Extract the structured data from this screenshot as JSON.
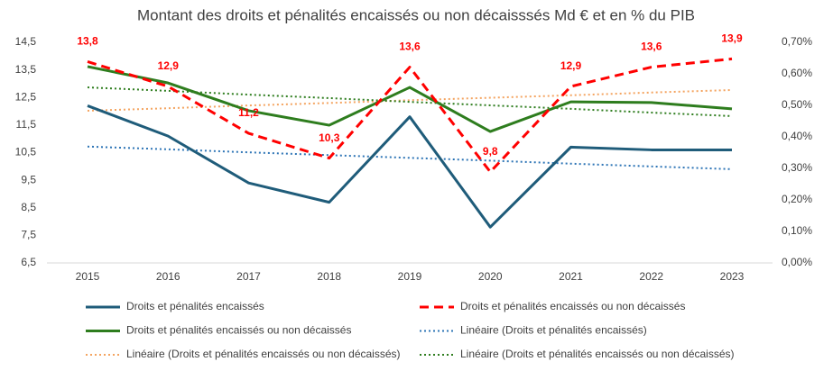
{
  "chart_data": {
    "type": "line",
    "title": "Montant des droits et pénalités encaissés ou non décaisssés Md € et en % du PIB",
    "categories": [
      "2015",
      "2016",
      "2017",
      "2018",
      "2019",
      "2020",
      "2021",
      "2022",
      "2023"
    ],
    "ylim": [
      6.5,
      14.5
    ],
    "yticks": [
      {
        "value": 6.5,
        "label": "6,5"
      },
      {
        "value": 7.5,
        "label": "7,5"
      },
      {
        "value": 8.5,
        "label": "8,5"
      },
      {
        "value": 9.5,
        "label": "9,5"
      },
      {
        "value": 10.5,
        "label": "10,5"
      },
      {
        "value": 11.5,
        "label": "11,5"
      },
      {
        "value": 12.5,
        "label": "12,5"
      },
      {
        "value": 13.5,
        "label": "13,5"
      },
      {
        "value": 14.5,
        "label": "14,5"
      }
    ],
    "y2lim": [
      0,
      0.7
    ],
    "y2ticks": [
      {
        "value": 0,
        "label": "0,00%"
      },
      {
        "value": 0.1,
        "label": "0,10%"
      },
      {
        "value": 0.2,
        "label": "0,20%"
      },
      {
        "value": 0.3,
        "label": "0,30%"
      },
      {
        "value": 0.4,
        "label": "0,40%"
      },
      {
        "value": 0.5,
        "label": "0,50%"
      },
      {
        "value": 0.6,
        "label": "0,60%"
      },
      {
        "value": 0.7,
        "label": "0,70%"
      }
    ],
    "series": [
      {
        "name": "Droits et pénalités encaissés",
        "color": "#1f5c7a",
        "style": "solid",
        "values": [
          12.2,
          11.1,
          9.4,
          8.7,
          11.8,
          7.8,
          10.7,
          10.6,
          10.6
        ]
      },
      {
        "name": "Droits et pénalités encaissés ou non décaissés",
        "color": "#ff0000",
        "style": "dashed",
        "values": [
          13.8,
          12.9,
          11.2,
          10.3,
          13.6,
          9.8,
          12.9,
          13.6,
          13.9
        ],
        "value_labels": [
          "13,8",
          "12,9",
          "11,2",
          "10,3",
          "13,6",
          "9,8",
          "12,9",
          "13,6",
          "13,9"
        ]
      },
      {
        "name": "Droits et pénalités encaissés ou non décaissés",
        "color": "#2e7d1e",
        "style": "solid",
        "axis": "y2",
        "values": [
          0.623,
          0.571,
          0.483,
          0.437,
          0.557,
          0.417,
          0.511,
          0.509,
          0.489
        ]
      },
      {
        "name": "Linéaire (Droits et pénalités encaissés)",
        "color": "#2e75b6",
        "style": "dotted",
        "values": [
          10.72,
          10.62,
          10.51,
          10.41,
          10.31,
          10.21,
          10.1,
          10.0,
          9.9
        ]
      },
      {
        "name": "Linéaire (Droits et pénalités encaissés ou non décaissés)",
        "color": "#f4a460",
        "style": "dotted",
        "values": [
          12.02,
          12.11,
          12.21,
          12.3,
          12.4,
          12.49,
          12.58,
          12.68,
          12.77
        ]
      },
      {
        "name": "Linéaire (Droits et pénalités encaissés ou non décaissés)",
        "color": "#2e7d1e",
        "style": "dotted",
        "axis": "y2",
        "values": [
          0.557,
          0.546,
          0.534,
          0.523,
          0.511,
          0.5,
          0.489,
          0.477,
          0.466
        ]
      }
    ]
  }
}
